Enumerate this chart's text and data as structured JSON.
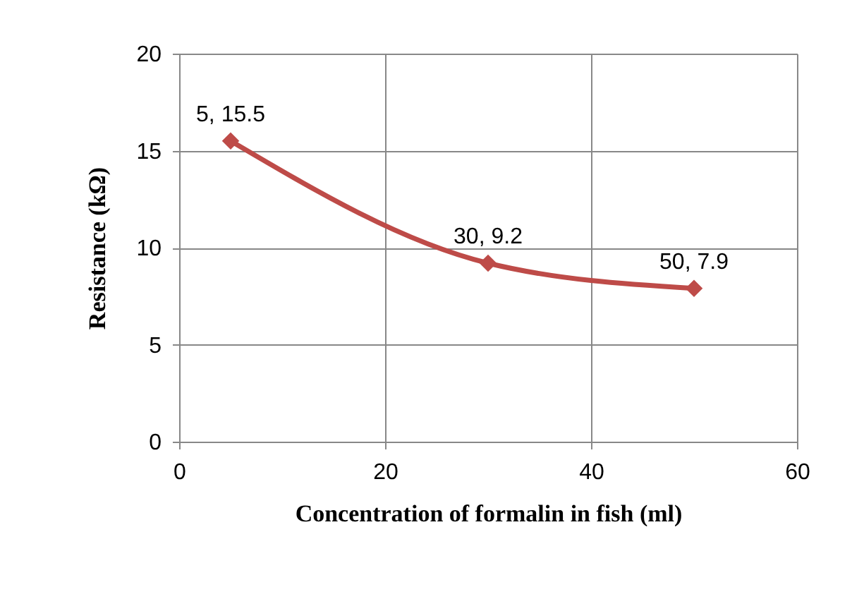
{
  "chart_data": {
    "type": "line",
    "xlabel": "Concentration of formalin in fish (ml)",
    "ylabel": "Resistance (kΩ)",
    "x": [
      5,
      30,
      50
    ],
    "series": [
      {
        "color": "#be4b48",
        "values": [
          15.5,
          9.2,
          7.9
        ]
      }
    ],
    "xlim": [
      0,
      60
    ],
    "xticks": [
      0,
      20,
      40,
      60
    ],
    "ylim": [
      0,
      20
    ],
    "yticks": [
      0,
      5,
      10,
      15,
      20
    ],
    "grid": true,
    "marker": "diamond",
    "line_style": "solid",
    "annotations": [
      {
        "text": "5, 15.5",
        "x": 5,
        "y": 15.5
      },
      {
        "text": "30, 9.2",
        "x": 30,
        "y": 9.2
      },
      {
        "text": "50, 7.9",
        "x": 50,
        "y": 7.9
      }
    ]
  }
}
